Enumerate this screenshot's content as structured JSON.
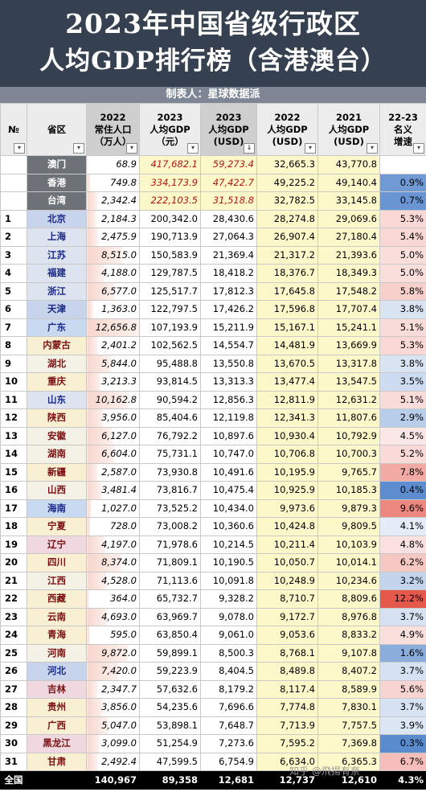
{
  "title_line1": "2023年中国省级行政区",
  "title_line2": "人均GDP排行榜（含港澳台）",
  "credit": "制表人：星球数据派",
  "watermark": "知乎 @飛揚有奈",
  "columns": [
    {
      "key": "rank",
      "l1": "№",
      "l2": "",
      "l3": "",
      "dark": false,
      "arrow": "▾"
    },
    {
      "key": "prov",
      "l1": "省区",
      "l2": "",
      "l3": "",
      "dark": false,
      "arrow": "▾"
    },
    {
      "key": "pop",
      "l1": "2022",
      "l2": "常住人口",
      "l3": "（万人）",
      "dark": true,
      "arrow": "▾"
    },
    {
      "key": "gdp23",
      "l1": "2023",
      "l2": "人均GDP",
      "l3": "（元）",
      "dark": false,
      "arrow": "▾"
    },
    {
      "key": "usd23",
      "l1": "2023",
      "l2": "人均GDP",
      "l3": "(USD)",
      "dark": true,
      "arrow": "↓"
    },
    {
      "key": "usd22",
      "l1": "2022",
      "l2": "人均GDP",
      "l3": "(USD)",
      "dark": false,
      "arrow": "▾"
    },
    {
      "key": "usd21",
      "l1": "2021",
      "l2": "人均GDP",
      "l3": "(USD)",
      "dark": false,
      "arrow": "▾"
    },
    {
      "key": "growth",
      "l1": "22-23",
      "l2": "名义",
      "l3": "增速",
      "dark": false,
      "arrow": "▾"
    }
  ],
  "colors": {
    "header_bg": "#354051",
    "credit_bg": "#7e8696",
    "sar_prov_bg": "#6d7178",
    "positive_growth": "#e5584c",
    "low_growth": "#5a8bcd"
  },
  "rows": [
    {
      "rank": "",
      "prov": "澳门",
      "pop": "68.9",
      "gdp23": "417,682.1",
      "usd23": "59,273.4",
      "usd22": "32,665.3",
      "usd21": "43,770.8",
      "growth": "",
      "region": "sar",
      "pop_ratio": 0.005,
      "growth_value": null
    },
    {
      "rank": "",
      "prov": "香港",
      "pop": "749.8",
      "gdp23": "334,173.9",
      "usd23": "47,422.7",
      "usd22": "49,225.2",
      "usd21": "49,140.4",
      "growth": "0.9%",
      "region": "sar",
      "pop_ratio": 0.06,
      "growth_value": 0.9
    },
    {
      "rank": "",
      "prov": "台湾",
      "pop": "2,342.4",
      "gdp23": "222,103.5",
      "usd23": "31,518.8",
      "usd22": "32,782.5",
      "usd21": "33,145.8",
      "growth": "0.7%",
      "region": "sar",
      "pop_ratio": 0.19,
      "growth_value": 0.7
    },
    {
      "rank": "1",
      "prov": "北京",
      "pop": "2,184.3",
      "gdp23": "200,342.0",
      "usd23": "28,430.6",
      "usd22": "28,274.8",
      "usd21": "29,069.6",
      "growth": "5.3%",
      "region": "north",
      "pop_ratio": 0.17,
      "growth_value": 5.3
    },
    {
      "rank": "2",
      "prov": "上海",
      "pop": "2,475.9",
      "gdp23": "190,713.9",
      "usd23": "27,064.3",
      "usd22": "26,907.4",
      "usd21": "27,180.4",
      "growth": "5.4%",
      "region": "east",
      "pop_ratio": 0.2,
      "growth_value": 5.4
    },
    {
      "rank": "3",
      "prov": "江苏",
      "pop": "8,515.0",
      "gdp23": "150,583.9",
      "usd23": "21,369.4",
      "usd22": "21,317.2",
      "usd21": "21,393.6",
      "growth": "5.0%",
      "region": "east",
      "pop_ratio": 0.67,
      "growth_value": 5.0
    },
    {
      "rank": "4",
      "prov": "福建",
      "pop": "4,188.0",
      "gdp23": "129,787.5",
      "usd23": "18,418.2",
      "usd22": "18,376.7",
      "usd21": "18,349.3",
      "growth": "5.0%",
      "region": "east",
      "pop_ratio": 0.33,
      "growth_value": 5.0
    },
    {
      "rank": "5",
      "prov": "浙江",
      "pop": "6,577.0",
      "gdp23": "125,517.7",
      "usd23": "17,812.3",
      "usd22": "17,645.8",
      "usd21": "17,548.2",
      "growth": "5.8%",
      "region": "east",
      "pop_ratio": 0.52,
      "growth_value": 5.8
    },
    {
      "rank": "6",
      "prov": "天津",
      "pop": "1,363.0",
      "gdp23": "122,797.5",
      "usd23": "17,426.2",
      "usd22": "17,596.8",
      "usd21": "17,707.4",
      "growth": "3.8%",
      "region": "north",
      "pop_ratio": 0.11,
      "growth_value": 3.8
    },
    {
      "rank": "7",
      "prov": "广东",
      "pop": "12,656.8",
      "gdp23": "107,193.9",
      "usd23": "15,211.9",
      "usd22": "15,167.1",
      "usd21": "15,241.1",
      "growth": "5.1%",
      "region": "south",
      "pop_ratio": 1.0,
      "growth_value": 5.1
    },
    {
      "rank": "8",
      "prov": "内蒙古",
      "pop": "2,401.2",
      "gdp23": "102,562.5",
      "usd23": "14,554.7",
      "usd22": "14,481.9",
      "usd21": "13,669.9",
      "growth": "5.3%",
      "region": "west",
      "pop_ratio": 0.19,
      "growth_value": 5.3
    },
    {
      "rank": "9",
      "prov": "湖北",
      "pop": "5,844.0",
      "gdp23": "95,488.8",
      "usd23": "13,550.8",
      "usd22": "13,670.5",
      "usd21": "13,317.8",
      "growth": "3.8%",
      "region": "central",
      "pop_ratio": 0.46,
      "growth_value": 3.8
    },
    {
      "rank": "10",
      "prov": "重庆",
      "pop": "3,213.3",
      "gdp23": "93,814.5",
      "usd23": "13,313.3",
      "usd22": "13,477.4",
      "usd21": "13,547.5",
      "growth": "3.5%",
      "region": "west",
      "pop_ratio": 0.25,
      "growth_value": 3.5
    },
    {
      "rank": "11",
      "prov": "山东",
      "pop": "10,162.8",
      "gdp23": "90,594.2",
      "usd23": "12,856.3",
      "usd22": "12,811.9",
      "usd21": "12,631.2",
      "growth": "5.1%",
      "region": "east",
      "pop_ratio": 0.8,
      "growth_value": 5.1
    },
    {
      "rank": "12",
      "prov": "陕西",
      "pop": "3,956.0",
      "gdp23": "85,404.6",
      "usd23": "12,119.8",
      "usd22": "12,341.3",
      "usd21": "11,807.6",
      "growth": "2.9%",
      "region": "west",
      "pop_ratio": 0.31,
      "growth_value": 2.9
    },
    {
      "rank": "13",
      "prov": "安徽",
      "pop": "6,127.0",
      "gdp23": "76,792.2",
      "usd23": "10,897.6",
      "usd22": "10,930.4",
      "usd21": "10,792.9",
      "growth": "4.5%",
      "region": "central",
      "pop_ratio": 0.48,
      "growth_value": 4.5
    },
    {
      "rank": "14",
      "prov": "湖南",
      "pop": "6,604.0",
      "gdp23": "75,731.1",
      "usd23": "10,747.0",
      "usd22": "10,706.8",
      "usd21": "10,700.3",
      "growth": "5.2%",
      "region": "central",
      "pop_ratio": 0.52,
      "growth_value": 5.2
    },
    {
      "rank": "15",
      "prov": "新疆",
      "pop": "2,587.0",
      "gdp23": "73,930.8",
      "usd23": "10,491.6",
      "usd22": "10,195.9",
      "usd21": "9,765.7",
      "growth": "7.8%",
      "region": "west",
      "pop_ratio": 0.2,
      "growth_value": 7.8
    },
    {
      "rank": "16",
      "prov": "山西",
      "pop": "3,481.4",
      "gdp23": "73,816.7",
      "usd23": "10,475.4",
      "usd22": "10,925.9",
      "usd21": "10,185.3",
      "growth": "0.4%",
      "region": "central",
      "pop_ratio": 0.28,
      "growth_value": 0.4
    },
    {
      "rank": "17",
      "prov": "海南",
      "pop": "1,027.0",
      "gdp23": "73,525.2",
      "usd23": "10,434.0",
      "usd22": "9,973.6",
      "usd21": "9,879.3",
      "growth": "9.6%",
      "region": "south",
      "pop_ratio": 0.08,
      "growth_value": 9.6
    },
    {
      "rank": "18",
      "prov": "宁夏",
      "pop": "728.0",
      "gdp23": "73,008.2",
      "usd23": "10,360.6",
      "usd22": "10,424.8",
      "usd21": "9,809.5",
      "growth": "4.1%",
      "region": "west",
      "pop_ratio": 0.06,
      "growth_value": 4.1
    },
    {
      "rank": "19",
      "prov": "辽宁",
      "pop": "4,197.0",
      "gdp23": "71,978.6",
      "usd23": "10,214.5",
      "usd22": "10,211.4",
      "usd21": "10,103.9",
      "growth": "4.8%",
      "region": "northeast",
      "pop_ratio": 0.33,
      "growth_value": 4.8
    },
    {
      "rank": "20",
      "prov": "四川",
      "pop": "8,374.0",
      "gdp23": "71,809.1",
      "usd23": "10,190.5",
      "usd22": "10,050.7",
      "usd21": "10,014.1",
      "growth": "6.2%",
      "region": "west",
      "pop_ratio": 0.66,
      "growth_value": 6.2
    },
    {
      "rank": "21",
      "prov": "江西",
      "pop": "4,528.0",
      "gdp23": "71,113.6",
      "usd23": "10,091.8",
      "usd22": "10,248.9",
      "usd21": "10,234.6",
      "growth": "3.2%",
      "region": "central",
      "pop_ratio": 0.36,
      "growth_value": 3.2
    },
    {
      "rank": "22",
      "prov": "西藏",
      "pop": "364.0",
      "gdp23": "65,732.7",
      "usd23": "9,328.2",
      "usd22": "8,710.7",
      "usd21": "8,809.6",
      "growth": "12.2%",
      "region": "west",
      "pop_ratio": 0.03,
      "growth_value": 12.2
    },
    {
      "rank": "23",
      "prov": "云南",
      "pop": "4,693.0",
      "gdp23": "63,969.7",
      "usd23": "9,078.0",
      "usd22": "9,172.7",
      "usd21": "8,976.8",
      "growth": "3.7%",
      "region": "west",
      "pop_ratio": 0.37,
      "growth_value": 3.7
    },
    {
      "rank": "24",
      "prov": "青海",
      "pop": "595.0",
      "gdp23": "63,850.4",
      "usd23": "9,061.0",
      "usd22": "9,053.6",
      "usd21": "8,833.2",
      "growth": "4.9%",
      "region": "west",
      "pop_ratio": 0.05,
      "growth_value": 4.9
    },
    {
      "rank": "25",
      "prov": "河南",
      "pop": "9,872.0",
      "gdp23": "59,899.1",
      "usd23": "8,500.3",
      "usd22": "8,768.1",
      "usd21": "9,107.8",
      "growth": "1.6%",
      "region": "central",
      "pop_ratio": 0.78,
      "growth_value": 1.6
    },
    {
      "rank": "26",
      "prov": "河北",
      "pop": "7,420.0",
      "gdp23": "59,223.9",
      "usd23": "8,404.5",
      "usd22": "8,489.8",
      "usd21": "8,407.2",
      "growth": "3.7%",
      "region": "north",
      "pop_ratio": 0.59,
      "growth_value": 3.7
    },
    {
      "rank": "27",
      "prov": "吉林",
      "pop": "2,347.7",
      "gdp23": "57,632.6",
      "usd23": "8,179.2",
      "usd22": "8,117.4",
      "usd21": "8,589.9",
      "growth": "5.6%",
      "region": "northeast",
      "pop_ratio": 0.19,
      "growth_value": 5.6
    },
    {
      "rank": "28",
      "prov": "贵州",
      "pop": "3,856.0",
      "gdp23": "54,235.6",
      "usd23": "7,696.6",
      "usd22": "7,774.8",
      "usd21": "7,830.1",
      "growth": "3.7%",
      "region": "west",
      "pop_ratio": 0.3,
      "growth_value": 3.7
    },
    {
      "rank": "29",
      "prov": "广西",
      "pop": "5,047.0",
      "gdp23": "53,898.1",
      "usd23": "7,648.7",
      "usd22": "7,713.9",
      "usd21": "7,757.5",
      "growth": "3.9%",
      "region": "west",
      "pop_ratio": 0.4,
      "growth_value": 3.9
    },
    {
      "rank": "30",
      "prov": "黑龙江",
      "pop": "3,099.0",
      "gdp23": "51,254.9",
      "usd23": "7,273.6",
      "usd22": "7,595.2",
      "usd21": "7,369.8",
      "growth": "0.3%",
      "region": "northeast",
      "pop_ratio": 0.24,
      "growth_value": 0.3
    },
    {
      "rank": "31",
      "prov": "甘肃",
      "pop": "2,492.4",
      "gdp23": "47,599.5",
      "usd23": "6,754.9",
      "usd22": "6,634.0",
      "usd21": "6,365.3",
      "growth": "6.7%",
      "region": "west",
      "pop_ratio": 0.2,
      "growth_value": 6.7
    }
  ],
  "total": {
    "rank": "全国",
    "pop": "140,967",
    "gdp23": "89,358",
    "usd23": "12,681",
    "usd22": "12,737",
    "usd21": "12,610",
    "growth": "4.3%"
  },
  "region_colors": {
    "sar": "#6d7178",
    "north": "#c7d4ec",
    "east": "#dde3ef",
    "south": "#c9d9f0",
    "central": "#f4f1e6",
    "west": "#f9f0d4",
    "northeast": "#f0d8e1"
  }
}
